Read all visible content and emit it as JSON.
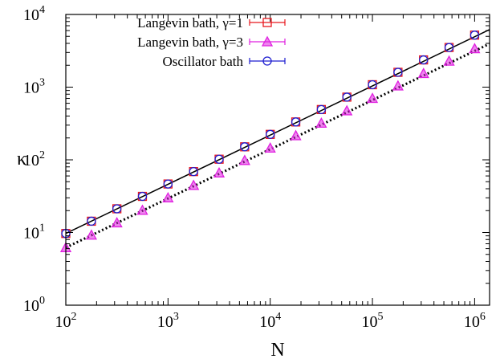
{
  "chart_data": {
    "type": "scatter",
    "title": "",
    "xlabel": "N",
    "ylabel": "κ",
    "xscale": "log",
    "yscale": "log",
    "xlim": [
      100,
      1400000
    ],
    "ylim": [
      1,
      10000
    ],
    "x_ticks": [
      {
        "value": 100,
        "mantissa": "10",
        "exp": "2"
      },
      {
        "value": 1000,
        "mantissa": "10",
        "exp": "3"
      },
      {
        "value": 10000,
        "mantissa": "10",
        "exp": "4"
      },
      {
        "value": 100000,
        "mantissa": "10",
        "exp": "5"
      },
      {
        "value": 1000000,
        "mantissa": "10",
        "exp": "6"
      }
    ],
    "y_ticks": [
      {
        "value": 1,
        "mantissa": "10",
        "exp": "0"
      },
      {
        "value": 10,
        "mantissa": "10",
        "exp": "1"
      },
      {
        "value": 100,
        "mantissa": "10",
        "exp": "2"
      },
      {
        "value": 1000,
        "mantissa": "10",
        "exp": "3"
      },
      {
        "value": 10000,
        "mantissa": "10",
        "exp": "4"
      }
    ],
    "grid": false,
    "legend_position": "top-left",
    "series": [
      {
        "name": "Langevin bath, γ=1",
        "color": "#e8171d",
        "marker": "square",
        "x": [
          100,
          178,
          316,
          562,
          1000,
          1778,
          3162,
          5623,
          10000,
          17783,
          31623,
          56234,
          100000,
          177828,
          316228,
          562341,
          1000000
        ],
        "y": [
          9.7,
          14.3,
          21.2,
          31.4,
          46.5,
          68.9,
          102,
          151,
          224,
          332,
          492,
          729,
          1080,
          1600,
          2370,
          3510,
          5200
        ]
      },
      {
        "name": "Langevin bath, γ=3",
        "color": "#e020e0",
        "marker": "triangle",
        "x": [
          100,
          178,
          316,
          562,
          1000,
          1778,
          3162,
          5623,
          10000,
          17783,
          31623,
          56234,
          100000,
          177828,
          316228,
          562341,
          1000000
        ],
        "y": [
          6.2,
          9.2,
          13.6,
          20.2,
          30,
          44.5,
          66,
          98,
          145,
          215,
          319,
          473,
          700,
          1040,
          1540,
          2280,
          3380
        ]
      },
      {
        "name": "Oscillator bath",
        "color": "#1f1fd0",
        "marker": "circle",
        "x": [
          100,
          178,
          316,
          562,
          1000,
          1778,
          3162,
          5623,
          10000,
          17783,
          31623,
          56234,
          100000,
          177828,
          316228,
          562341,
          1000000
        ],
        "y": [
          9.7,
          14.3,
          21.2,
          31.4,
          46.5,
          68.9,
          102,
          151,
          224,
          332,
          492,
          729,
          1080,
          1600,
          2370,
          3510,
          5200
        ]
      }
    ],
    "fit_lines": [
      {
        "style": "solid",
        "color": "#000000",
        "from": [
          100,
          9.7
        ],
        "to": [
          1400000,
          6200
        ]
      },
      {
        "style": "dotted",
        "color": "#000000",
        "from": [
          100,
          6.2
        ],
        "to": [
          1400000,
          3950
        ]
      }
    ]
  }
}
